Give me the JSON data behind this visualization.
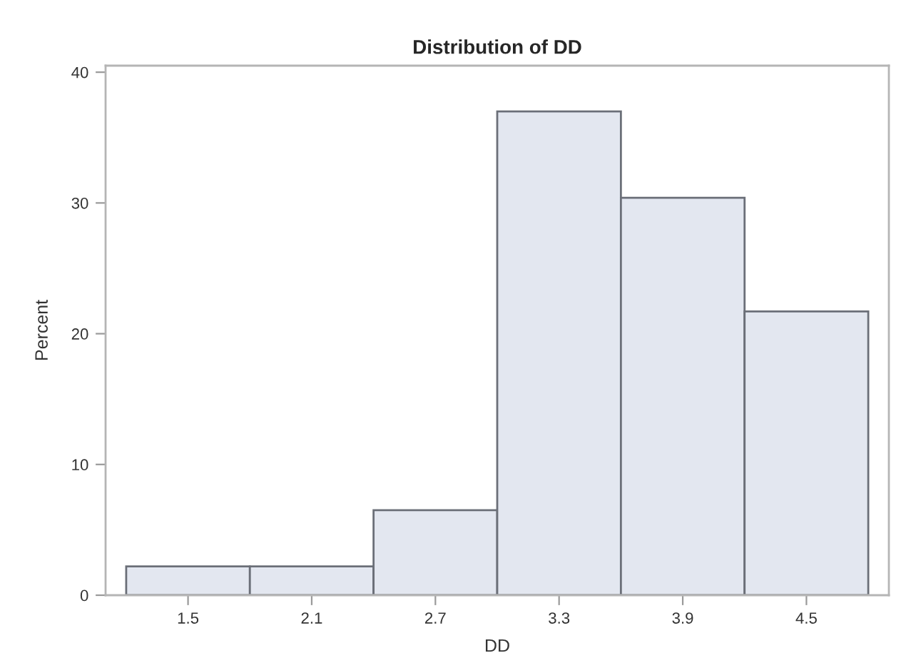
{
  "chart_data": {
    "type": "histogram",
    "title": "Distribution of DD",
    "xlabel": "DD",
    "ylabel": "Percent",
    "bins": [
      1.2,
      1.8,
      2.4,
      3.0,
      3.6,
      4.2,
      4.8
    ],
    "values": [
      2.2,
      2.2,
      6.5,
      37.0,
      30.4,
      21.7
    ],
    "color": "#e3e7f0",
    "xlim": [
      1.1,
      4.9
    ],
    "xticks": [
      1.5,
      2.1,
      2.7,
      3.3,
      3.9,
      4.5
    ],
    "ylim": [
      0,
      40.5
    ],
    "yticks": [
      0,
      10,
      20,
      30,
      40
    ],
    "grid": false,
    "legend": false
  }
}
